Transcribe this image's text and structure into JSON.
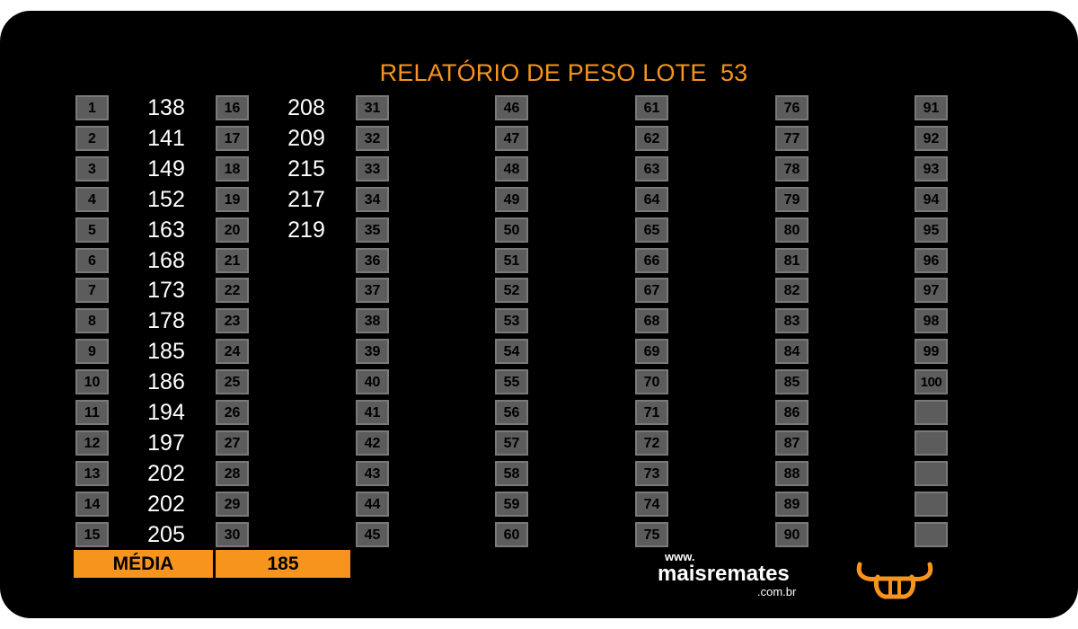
{
  "title": "RELATÓRIO DE PESO LOTE  53",
  "cells": [
    "1",
    "2",
    "3",
    "4",
    "5",
    "6",
    "7",
    "8",
    "9",
    "10",
    "11",
    "12",
    "13",
    "14",
    "15",
    "16",
    "17",
    "18",
    "19",
    "20",
    "21",
    "22",
    "23",
    "24",
    "25",
    "26",
    "27",
    "28",
    "29",
    "30",
    "31",
    "32",
    "33",
    "34",
    "35",
    "36",
    "37",
    "38",
    "39",
    "40",
    "41",
    "42",
    "43",
    "44",
    "45",
    "46",
    "47",
    "48",
    "49",
    "50",
    "51",
    "52",
    "53",
    "54",
    "55",
    "56",
    "57",
    "58",
    "59",
    "60",
    "61",
    "62",
    "63",
    "64",
    "65",
    "66",
    "67",
    "68",
    "69",
    "70",
    "71",
    "72",
    "73",
    "74",
    "75",
    "76",
    "77",
    "78",
    "79",
    "80",
    "81",
    "82",
    "83",
    "84",
    "85",
    "86",
    "87",
    "88",
    "89",
    "90",
    "91",
    "92",
    "93",
    "94",
    "95",
    "96",
    "97",
    "98",
    "99",
    "100",
    "",
    "",
    "",
    "",
    ""
  ],
  "weights": [
    "138",
    "141",
    "149",
    "152",
    "163",
    "168",
    "173",
    "178",
    "185",
    "186",
    "194",
    "197",
    "202",
    "202",
    "205",
    "208",
    "209",
    "215",
    "217",
    "219"
  ],
  "average": {
    "label": "MÉDIA",
    "value": "185"
  },
  "logo": {
    "www": "www.",
    "name": "maisremates",
    "domain": ".com.br"
  },
  "colors": {
    "accent": "#f7941d",
    "background": "#000000",
    "cell": "#5c5c5c"
  }
}
